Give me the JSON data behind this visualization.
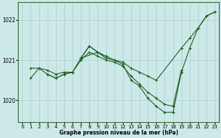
{
  "bg_color": "#cce8e8",
  "line_color": "#1a5c1a",
  "grid_color": "#aacccc",
  "xlabel": "Graphe pression niveau de la mer (hPa)",
  "xlim": [
    -0.5,
    23.5
  ],
  "ylim": [
    1019.45,
    1022.45
  ],
  "yticks": [
    1020,
    1021,
    1022
  ],
  "xticks": [
    0,
    1,
    2,
    3,
    4,
    5,
    6,
    7,
    8,
    9,
    10,
    11,
    12,
    13,
    14,
    15,
    16,
    17,
    18,
    19,
    20,
    21,
    22,
    23
  ],
  "series": [
    {
      "x": [
        1,
        2,
        3,
        4,
        5,
        6,
        7,
        8,
        9,
        10,
        11,
        12,
        13,
        14,
        15,
        16,
        17,
        18,
        19,
        20,
        21,
        22,
        23
      ],
      "y": [
        1020.55,
        1020.8,
        1020.65,
        1020.55,
        1020.65,
        1020.7,
        1021.05,
        1021.35,
        1021.2,
        1021.05,
        1021.0,
        1020.9,
        1020.5,
        1020.35,
        1020.05,
        1019.85,
        1019.7,
        1019.7,
        1020.7,
        1021.3,
        1021.8,
        1022.1,
        1022.2
      ]
    },
    {
      "x": [
        7,
        9,
        10,
        11,
        12,
        13,
        14,
        15,
        16,
        19,
        20,
        21,
        22,
        23
      ],
      "y": [
        1021.05,
        1021.2,
        1021.1,
        1021.0,
        1020.95,
        1020.8,
        1020.7,
        1020.6,
        1020.5,
        1021.3,
        1021.55,
        1021.8,
        1022.1,
        1022.2
      ]
    },
    {
      "x": [
        7,
        8,
        9,
        10
      ],
      "y": [
        1021.05,
        1021.35,
        1021.2,
        1021.05
      ]
    },
    {
      "x": [
        1,
        2,
        3,
        4,
        5,
        6,
        7,
        8,
        9,
        10,
        11,
        12,
        13,
        14,
        15,
        16,
        17,
        18,
        19
      ],
      "y": [
        1020.8,
        1020.8,
        1020.75,
        1020.65,
        1020.7,
        1020.7,
        1021.0,
        1021.2,
        1021.1,
        1021.0,
        1020.95,
        1020.85,
        1020.6,
        1020.4,
        1020.2,
        1020.05,
        1019.9,
        1019.85,
        1020.75
      ]
    },
    {
      "x": [
        3,
        4,
        5,
        6
      ],
      "y": [
        1020.65,
        1020.55,
        1020.65,
        1020.7
      ]
    }
  ]
}
